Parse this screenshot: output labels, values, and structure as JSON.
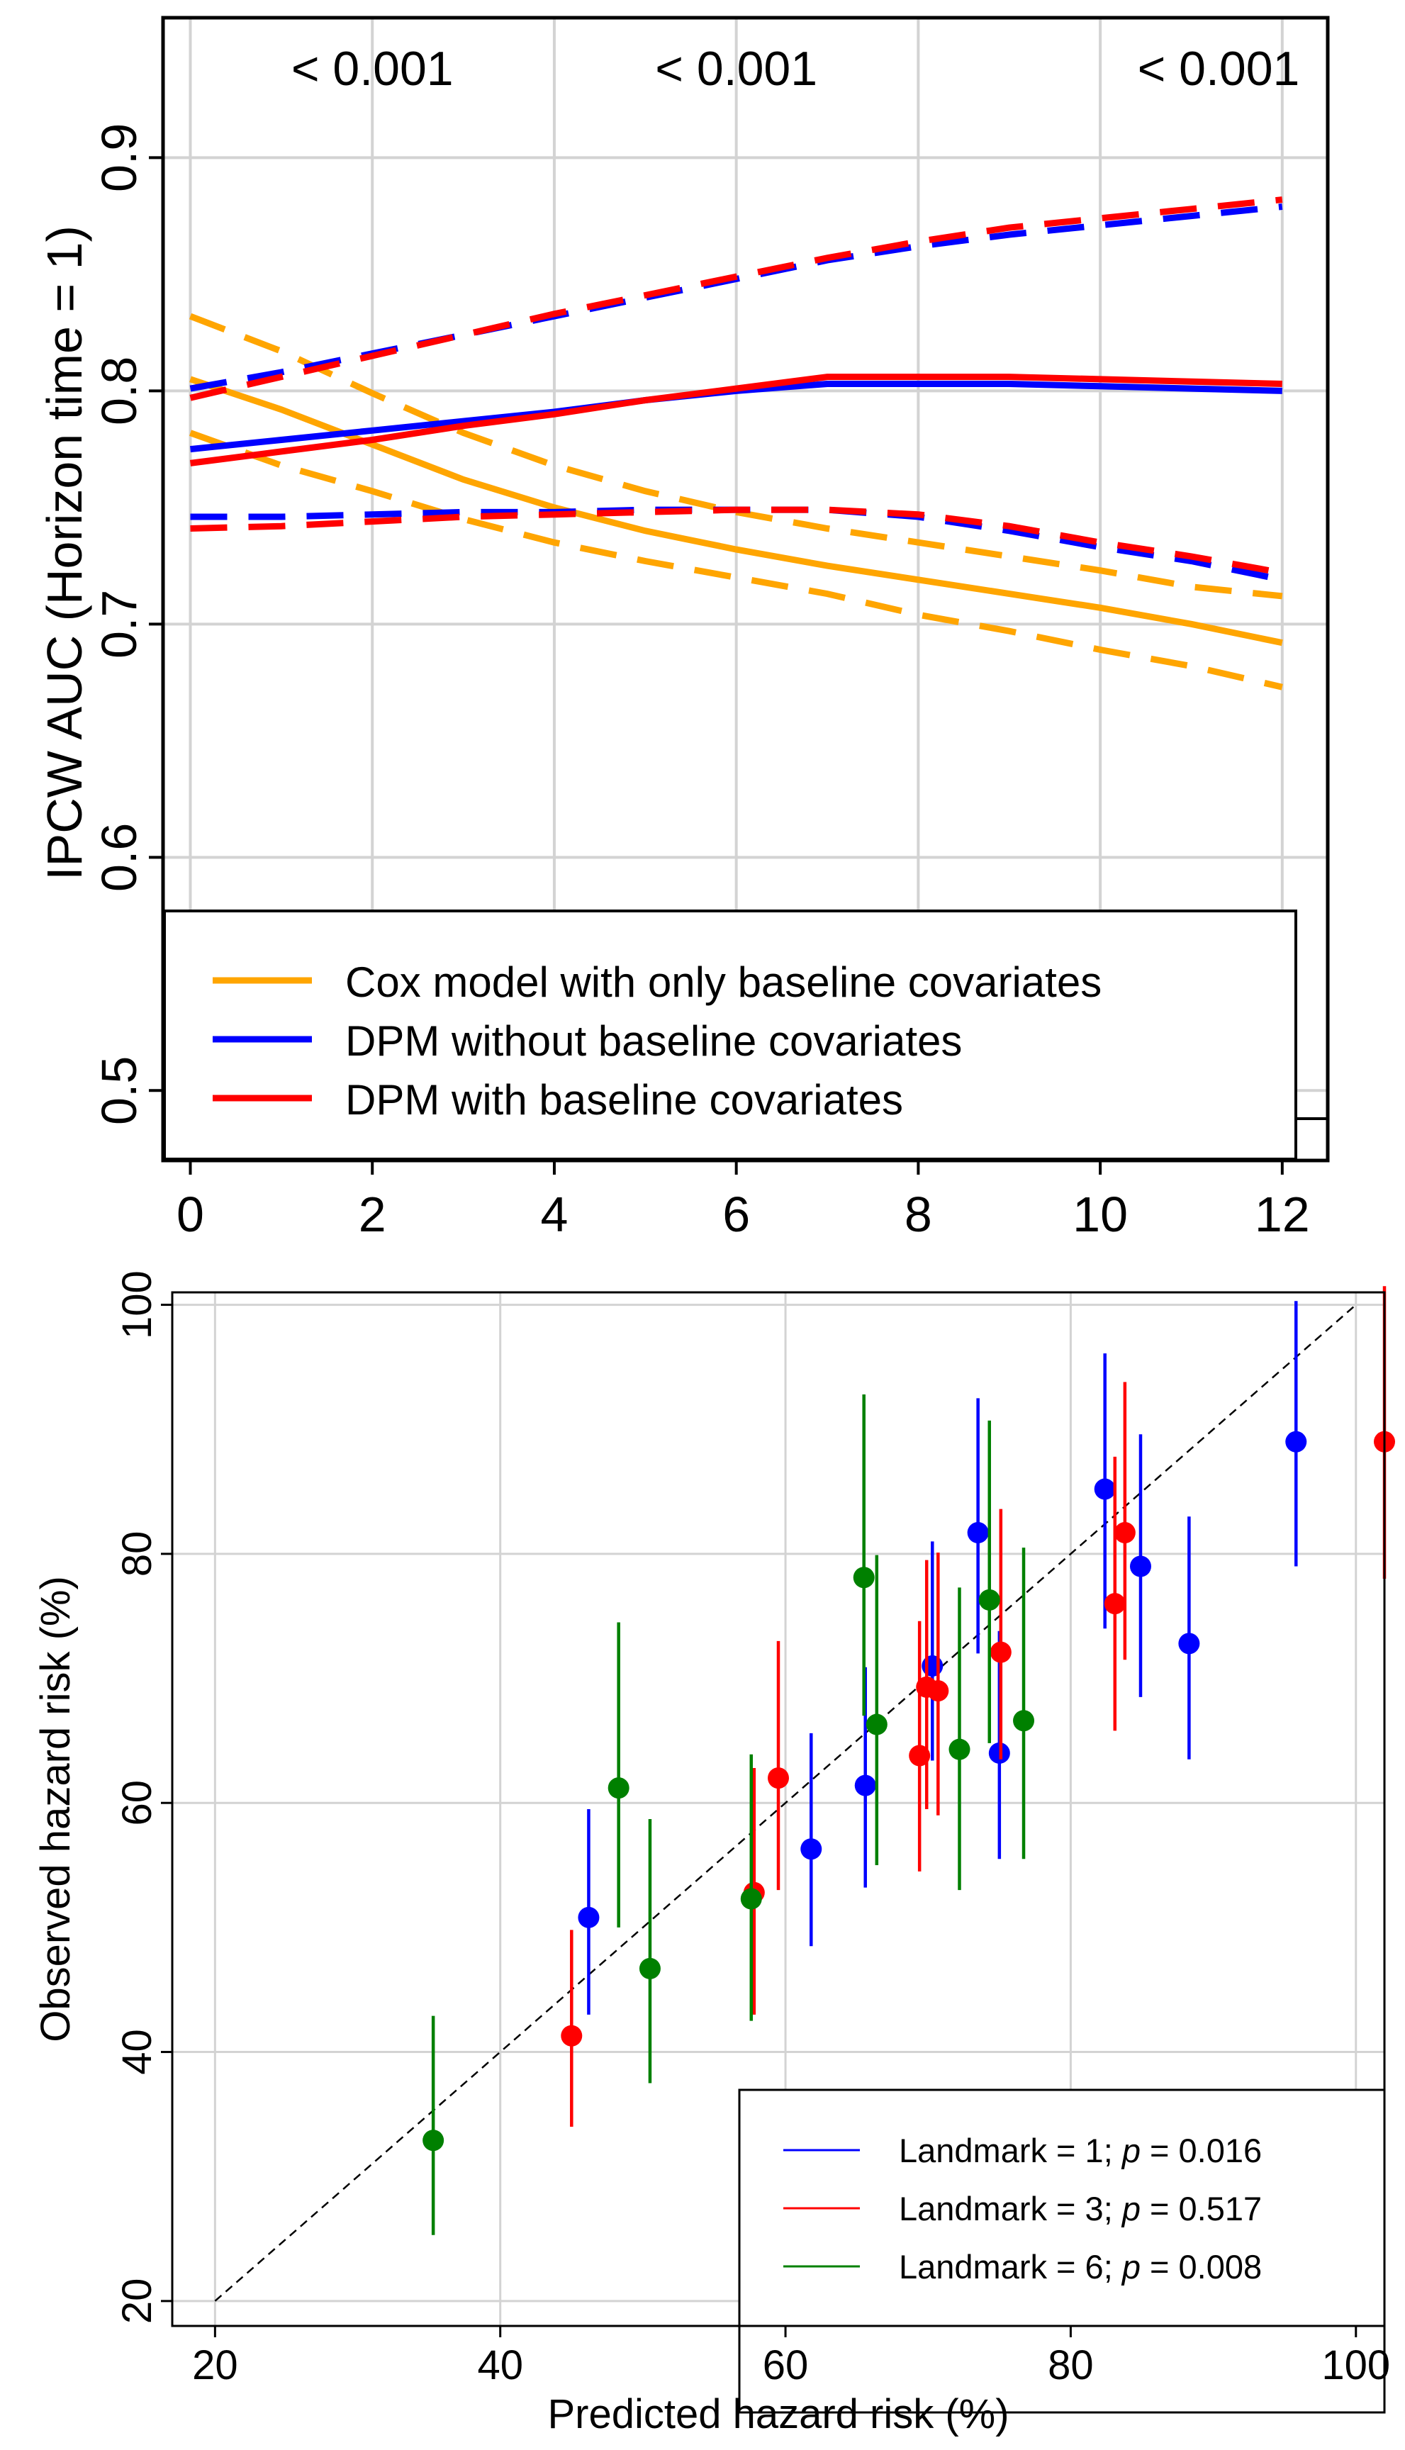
{
  "chart_data": [
    {
      "type": "line",
      "title": "",
      "xlabel": "",
      "ylabel": "IPCW AUC (Horizon time = 1)",
      "xlim": [
        -0.3,
        12.5
      ],
      "ylim": [
        0.47,
        0.96
      ],
      "xticks": [
        0,
        2,
        4,
        6,
        8,
        10,
        12
      ],
      "xtick_labels": [
        "0",
        "2",
        "4",
        "6",
        "8",
        "10",
        "12"
      ],
      "yticks": [
        0.5,
        0.6,
        0.7,
        0.8,
        0.9
      ],
      "ytick_labels": [
        "0.5",
        "0.6",
        "0.7",
        "0.8",
        "0.9"
      ],
      "grid": true,
      "pvalue_annotations": [
        {
          "x": 2.0,
          "label": "< 0.001"
        },
        {
          "x": 6.0,
          "label": "< 0.001"
        },
        {
          "x": 11.3,
          "label": "< 0.001"
        }
      ],
      "x": [
        0,
        1,
        2,
        3,
        4,
        5,
        6,
        7,
        8,
        9,
        10,
        11,
        12
      ],
      "series": [
        {
          "name": "Cox model with only baseline covariates",
          "legend": "Cox model with only baseline covariates",
          "color": "#FFA500",
          "estimate": [
            0.805,
            0.792,
            0.777,
            0.762,
            0.75,
            0.74,
            0.732,
            0.725,
            0.719,
            0.713,
            0.707,
            0.7,
            0.692
          ],
          "lower": [
            0.782,
            0.768,
            0.757,
            0.745,
            0.735,
            0.727,
            0.72,
            0.713,
            0.704,
            0.697,
            0.689,
            0.682,
            0.673
          ],
          "upper": [
            0.832,
            0.817,
            0.799,
            0.782,
            0.768,
            0.757,
            0.748,
            0.741,
            0.735,
            0.729,
            0.723,
            0.716,
            0.712
          ]
        },
        {
          "name": "DPM without baseline covariates",
          "legend": "DPM without baseline covariates",
          "color": "#0000FF",
          "estimate": [
            0.775,
            0.779,
            0.783,
            0.787,
            0.791,
            0.796,
            0.8,
            0.803,
            0.803,
            0.803,
            0.802,
            0.801,
            0.8
          ],
          "lower": [
            0.746,
            0.746,
            0.747,
            0.748,
            0.748,
            0.749,
            0.749,
            0.749,
            0.746,
            0.74,
            0.733,
            0.727,
            0.719
          ],
          "upper": [
            0.801,
            0.808,
            0.816,
            0.824,
            0.832,
            0.84,
            0.848,
            0.856,
            0.862,
            0.867,
            0.871,
            0.875,
            0.879
          ]
        },
        {
          "name": "DPM with baseline covariates",
          "legend": "DPM with baseline covariates",
          "color": "#FF0000",
          "estimate": [
            0.769,
            0.774,
            0.779,
            0.785,
            0.79,
            0.796,
            0.801,
            0.806,
            0.806,
            0.806,
            0.805,
            0.804,
            0.803
          ],
          "lower": [
            0.741,
            0.742,
            0.744,
            0.746,
            0.747,
            0.748,
            0.749,
            0.749,
            0.747,
            0.742,
            0.735,
            0.729,
            0.722
          ],
          "upper": [
            0.797,
            0.806,
            0.815,
            0.824,
            0.833,
            0.841,
            0.849,
            0.857,
            0.864,
            0.87,
            0.874,
            0.878,
            0.882
          ]
        }
      ],
      "legend_position": "bottom-left"
    },
    {
      "type": "scatter",
      "title": "",
      "xlabel": "Predicted hazard risk (%)",
      "ylabel": "Observed hazard risk (%)",
      "xlim": [
        17,
        102
      ],
      "ylim": [
        18,
        101
      ],
      "xticks": [
        20,
        40,
        60,
        80,
        100
      ],
      "xtick_labels": [
        "20",
        "40",
        "60",
        "80",
        "100"
      ],
      "yticks": [
        20,
        40,
        60,
        80,
        100
      ],
      "ytick_labels": [
        "20",
        "40",
        "60",
        "80",
        "100"
      ],
      "grid": true,
      "reference_line": {
        "from": [
          20,
          20
        ],
        "to": [
          100,
          100
        ],
        "style": "dashed"
      },
      "series": [
        {
          "name": "Landmark = 1",
          "legend_prefix": "Landmark = 1; ",
          "legend_symbol": "p",
          "legend_suffix": " = 0.016",
          "color": "#0000FF",
          "points": [
            {
              "x": 46.2,
              "y": 50.8,
              "lo": 43.0,
              "hi": 59.5
            },
            {
              "x": 61.8,
              "y": 56.3,
              "lo": 48.5,
              "hi": 65.6
            },
            {
              "x": 65.6,
              "y": 61.4,
              "lo": 53.2,
              "hi": 70.9
            },
            {
              "x": 70.3,
              "y": 71.0,
              "lo": 63.4,
              "hi": 81.0
            },
            {
              "x": 73.5,
              "y": 81.7,
              "lo": 72.0,
              "hi": 92.5
            },
            {
              "x": 75.0,
              "y": 64.0,
              "lo": 55.5,
              "hi": 73.8
            },
            {
              "x": 82.4,
              "y": 85.2,
              "lo": 74.0,
              "hi": 96.1
            },
            {
              "x": 84.9,
              "y": 79.0,
              "lo": 68.5,
              "hi": 89.6
            },
            {
              "x": 88.3,
              "y": 72.8,
              "lo": 63.5,
              "hi": 83.0
            },
            {
              "x": 95.8,
              "y": 89.0,
              "lo": 79.0,
              "hi": 100.3
            }
          ]
        },
        {
          "name": "Landmark = 3",
          "legend_prefix": "Landmark = 3; ",
          "legend_symbol": "p",
          "legend_suffix": " = 0.517",
          "color": "#FF0000",
          "points": [
            {
              "x": 45.0,
              "y": 41.3,
              "lo": 34.0,
              "hi": 49.8
            },
            {
              "x": 57.8,
              "y": 52.8,
              "lo": 43.0,
              "hi": 62.8
            },
            {
              "x": 59.5,
              "y": 62.0,
              "lo": 53.0,
              "hi": 73.0
            },
            {
              "x": 69.4,
              "y": 63.8,
              "lo": 54.5,
              "hi": 74.6
            },
            {
              "x": 69.9,
              "y": 69.3,
              "lo": 59.5,
              "hi": 79.5
            },
            {
              "x": 70.7,
              "y": 69.0,
              "lo": 59.0,
              "hi": 80.1
            },
            {
              "x": 75.1,
              "y": 72.1,
              "lo": 63.5,
              "hi": 83.6
            },
            {
              "x": 83.1,
              "y": 76.0,
              "lo": 65.8,
              "hi": 87.8
            },
            {
              "x": 83.8,
              "y": 81.7,
              "lo": 71.5,
              "hi": 93.8
            },
            {
              "x": 102.0,
              "y": 89.0,
              "lo": 78.0,
              "hi": 101.5
            }
          ]
        },
        {
          "name": "Landmark = 6",
          "legend_prefix": "Landmark = 6; ",
          "legend_symbol": "p",
          "legend_suffix": " = 0.008",
          "color": "#008000",
          "points": [
            {
              "x": 35.3,
              "y": 32.9,
              "lo": 25.3,
              "hi": 42.9
            },
            {
              "x": 48.3,
              "y": 61.2,
              "lo": 50.0,
              "hi": 74.5
            },
            {
              "x": 50.5,
              "y": 46.7,
              "lo": 37.5,
              "hi": 58.7
            },
            {
              "x": 57.6,
              "y": 52.3,
              "lo": 42.5,
              "hi": 63.9
            },
            {
              "x": 65.5,
              "y": 78.1,
              "lo": 67.0,
              "hi": 92.8
            },
            {
              "x": 66.4,
              "y": 66.3,
              "lo": 55.0,
              "hi": 79.9
            },
            {
              "x": 72.2,
              "y": 64.3,
              "lo": 53.0,
              "hi": 77.3
            },
            {
              "x": 74.3,
              "y": 76.3,
              "lo": 64.8,
              "hi": 90.7
            },
            {
              "x": 76.7,
              "y": 66.6,
              "lo": 55.5,
              "hi": 80.5
            }
          ]
        }
      ],
      "legend_position": "bottom-right"
    }
  ]
}
